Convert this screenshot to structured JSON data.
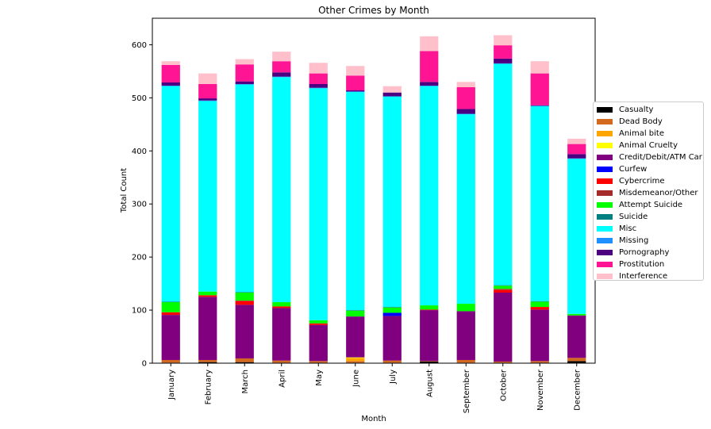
{
  "chart_data": {
    "type": "bar",
    "stacked": true,
    "title": "Other Crimes by Month",
    "xlabel": "Month",
    "ylabel": "Total Count",
    "ylim": [
      0,
      650
    ],
    "yticks": [
      0,
      100,
      200,
      300,
      400,
      500,
      600
    ],
    "grid": false,
    "legend_position": "right",
    "categories": [
      "January",
      "February",
      "March",
      "April",
      "May",
      "June",
      "July",
      "August",
      "September",
      "October",
      "November",
      "December"
    ],
    "series": [
      {
        "name": "Casualty",
        "color": "#000000",
        "values": [
          1,
          2,
          2,
          1,
          1,
          1,
          1,
          3,
          1,
          1,
          1,
          4
        ]
      },
      {
        "name": "Dead Body",
        "color": "#d2691e",
        "values": [
          5,
          4,
          7,
          4,
          3,
          3,
          4,
          1,
          5,
          2,
          3,
          6
        ]
      },
      {
        "name": "Animal bite",
        "color": "#ffa500",
        "values": [
          0,
          0,
          0,
          0,
          0,
          6,
          0,
          0,
          0,
          0,
          0,
          0
        ]
      },
      {
        "name": "Animal Cruelty",
        "color": "#ffff00",
        "values": [
          0,
          0,
          0,
          0,
          0,
          1,
          0,
          0,
          0,
          0,
          0,
          0
        ]
      },
      {
        "name": "Credit/Debit/ATM Car",
        "color": "#800080",
        "values": [
          85,
          119,
          101,
          99,
          68,
          77,
          84,
          96,
          92,
          130,
          97,
          80
        ]
      },
      {
        "name": "Curfew",
        "color": "#0000ff",
        "values": [
          0,
          0,
          0,
          0,
          0,
          0,
          6,
          0,
          0,
          0,
          0,
          0
        ]
      },
      {
        "name": "Cybercrime",
        "color": "#ff0000",
        "values": [
          5,
          3,
          7,
          3,
          3,
          0,
          0,
          1,
          0,
          5,
          5,
          0
        ]
      },
      {
        "name": "Misdemeanor/Other",
        "color": "#a52a2a",
        "values": [
          0,
          0,
          1,
          0,
          0,
          0,
          0,
          0,
          0,
          2,
          0,
          0
        ]
      },
      {
        "name": "Attempt Suicide",
        "color": "#00ff00",
        "values": [
          19,
          7,
          15,
          8,
          6,
          11,
          10,
          8,
          14,
          6,
          10,
          3
        ]
      },
      {
        "name": "Suicide",
        "color": "#008080",
        "values": [
          1,
          0,
          1,
          0,
          0,
          1,
          1,
          0,
          0,
          1,
          1,
          0
        ]
      },
      {
        "name": "Misc",
        "color": "#00ffff",
        "values": [
          406,
          359,
          391,
          424,
          437,
          411,
          396,
          413,
          357,
          417,
          367,
          292
        ]
      },
      {
        "name": "Missing",
        "color": "#1e90ff",
        "values": [
          1,
          1,
          1,
          1,
          1,
          1,
          1,
          1,
          1,
          1,
          1,
          1
        ]
      },
      {
        "name": "Pornography",
        "color": "#4b0082",
        "values": [
          6,
          4,
          5,
          8,
          7,
          2,
          7,
          7,
          9,
          9,
          1,
          8
        ]
      },
      {
        "name": "Prostitution",
        "color": "#ff1493",
        "values": [
          33,
          27,
          32,
          21,
          20,
          28,
          0,
          58,
          41,
          25,
          60,
          19
        ]
      },
      {
        "name": "Interference",
        "color": "#ffc0cb",
        "values": [
          7,
          20,
          10,
          18,
          20,
          18,
          12,
          28,
          10,
          19,
          23,
          10
        ]
      }
    ]
  }
}
